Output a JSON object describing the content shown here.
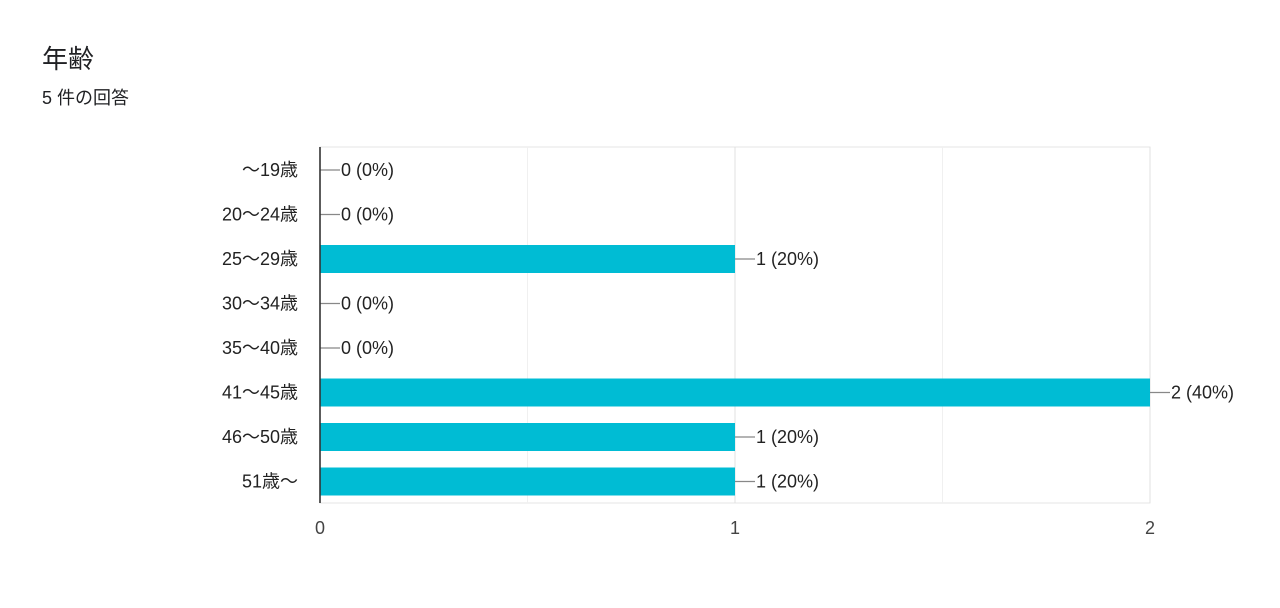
{
  "question": {
    "title": "年齢",
    "response_count": "5 件の回答"
  },
  "colors": {
    "bar": "#00bcd4",
    "text": "#222222",
    "grid": "#e6e6e6",
    "axis": "#333333"
  },
  "chart_data": {
    "type": "bar",
    "orientation": "horizontal",
    "categories": [
      "～19歳",
      "20～24歳",
      "25～29歳",
      "30～34歳",
      "35～40歳",
      "41～45歳",
      "46～50歳",
      "51歳～"
    ],
    "values": [
      0,
      0,
      1,
      0,
      0,
      2,
      1,
      1
    ],
    "data_labels": [
      "0 (0%)",
      "0 (0%)",
      "1 (20%)",
      "0 (0%)",
      "0 (0%)",
      "2 (40%)",
      "1 (20%)",
      "1 (20%)"
    ],
    "x_ticks": [
      "0",
      "1",
      "2"
    ],
    "xlim": [
      0,
      2
    ],
    "grid": true,
    "legend": "none"
  }
}
